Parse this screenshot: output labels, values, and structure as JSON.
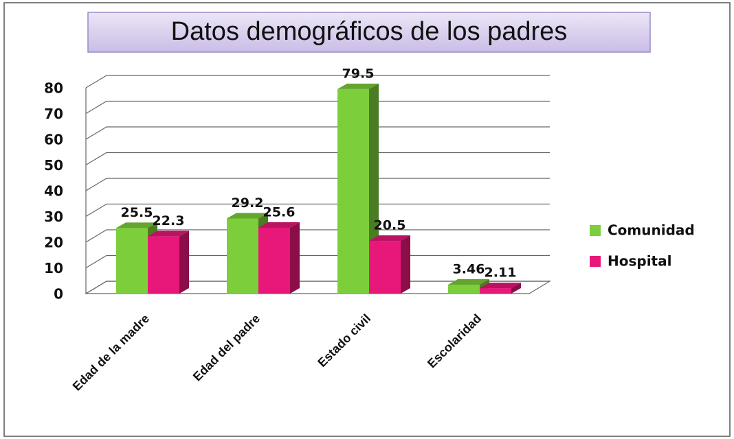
{
  "chart_data": {
    "type": "bar3d",
    "title": "Datos demográficos de los padres",
    "categories": [
      "Edad de la madre",
      "Edad del padre",
      "Estado civil",
      "Escolaridad"
    ],
    "series": [
      {
        "name": "Comunidad",
        "color": "#7cce3a",
        "values": [
          25.5,
          29.2,
          79.5,
          3.46
        ]
      },
      {
        "name": "Hospital",
        "color": "#e8187a",
        "values": [
          22.3,
          25.6,
          20.5,
          2.11
        ]
      }
    ],
    "ylim": [
      0,
      80
    ],
    "yticks": [
      0,
      10,
      20,
      30,
      40,
      50,
      60,
      70,
      80
    ],
    "grid": true,
    "legend": "right"
  }
}
